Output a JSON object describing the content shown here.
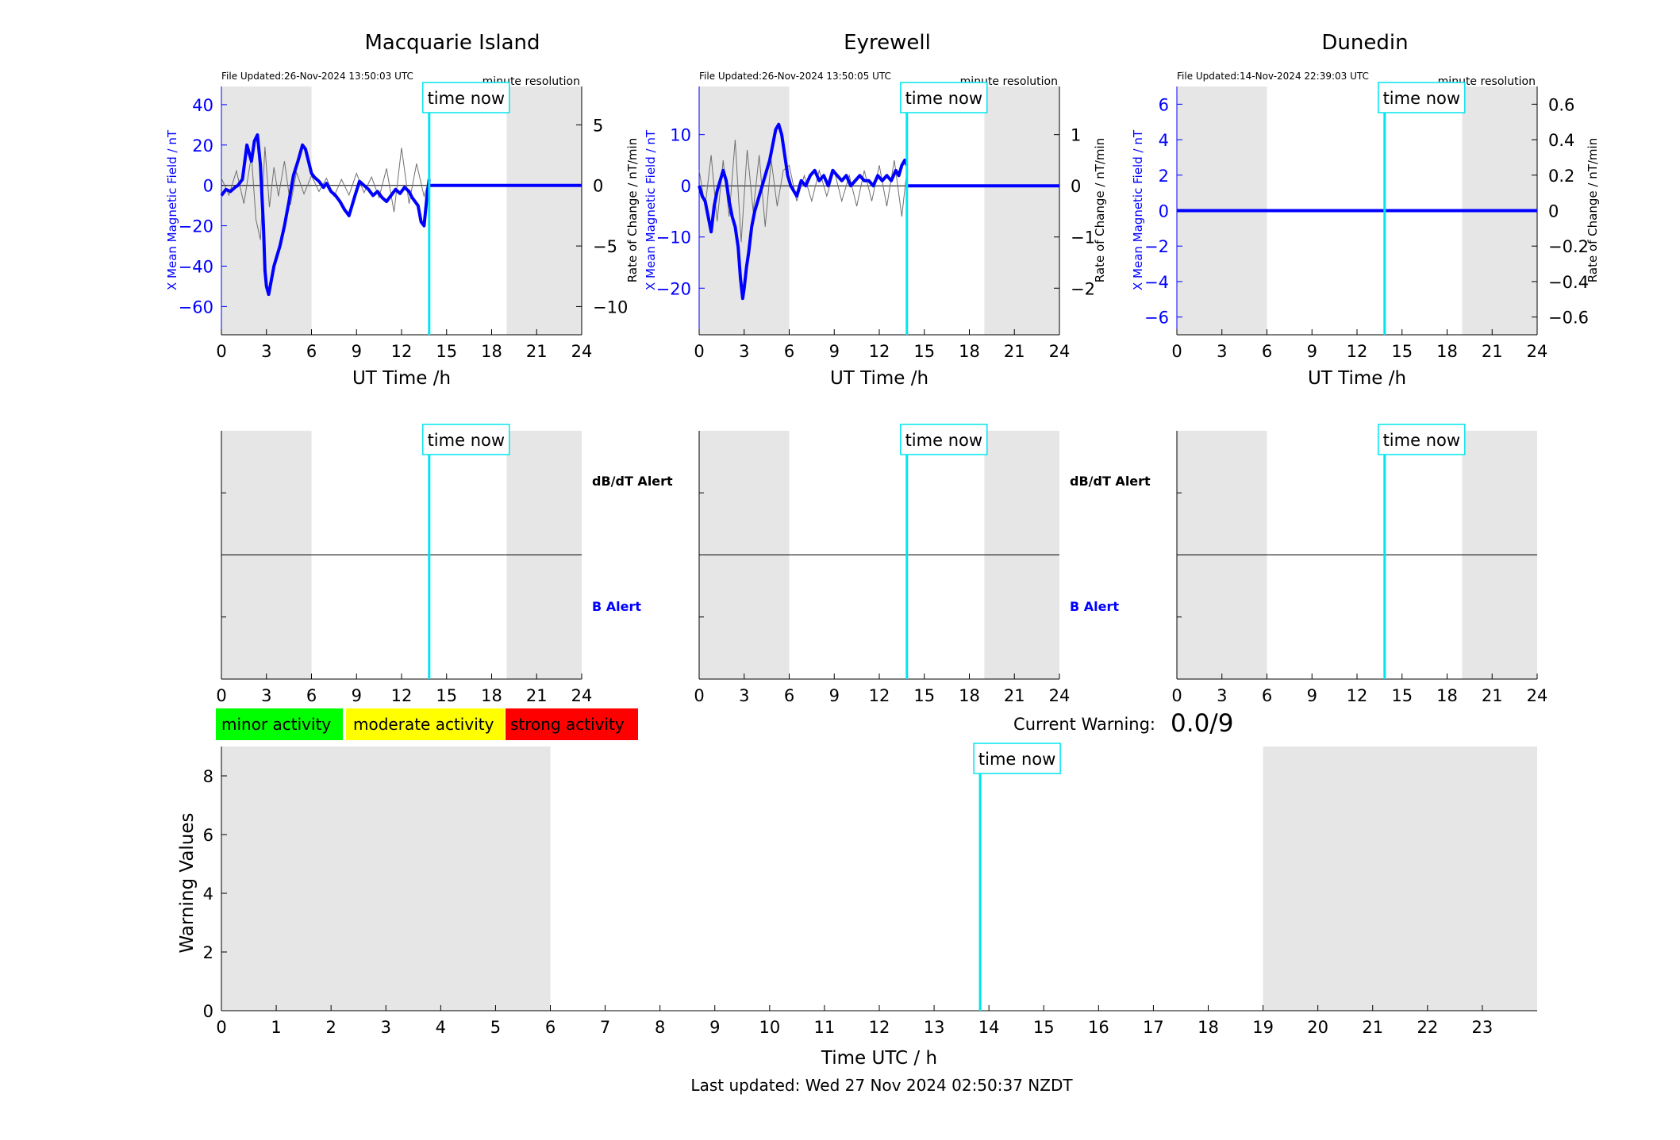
{
  "common": {
    "time_now_label": "time now",
    "time_now_h": 13.84,
    "night_shading": [
      [
        0,
        6
      ],
      [
        19,
        24
      ]
    ],
    "x_ticks": [
      0,
      3,
      6,
      9,
      12,
      15,
      18,
      21,
      24
    ],
    "xlim": [
      0,
      24
    ],
    "now_line_color": "#00e5ee",
    "field_color": "#0000ff",
    "rate_color": "#707070",
    "shade_color": "#e6e6e6"
  },
  "chart_data": [
    {
      "type": "line",
      "title": "Macquarie Island",
      "file_updated": "File Updated:26-Nov-2024 13:50:03 UTC",
      "resolution": "minute resolution",
      "xlabel": "UT Time /h",
      "ylabel": "X Mean Magnetic Field / nT",
      "ylabel_right": "Rate of Change / nT/min",
      "ylim": [
        -74,
        49
      ],
      "y_ticks": [
        -60,
        -40,
        -20,
        0,
        20,
        40
      ],
      "ylim_right": [
        -12.33,
        8.17
      ],
      "y_ticks_right": [
        -10,
        -5,
        0,
        5
      ],
      "data_end_h": 13.84,
      "series": [
        {
          "kind": "field",
          "x": [
            0,
            0.3,
            0.6,
            0.9,
            1.1,
            1.4,
            1.7,
            2.0,
            2.2,
            2.4,
            2.6,
            2.8,
            2.9,
            3.0,
            3.15,
            3.3,
            3.5,
            3.7,
            3.9,
            4.2,
            4.5,
            4.8,
            5.1,
            5.4,
            5.6,
            5.8,
            6.0,
            6.2,
            6.5,
            6.8,
            7.0,
            7.3,
            7.6,
            7.9,
            8.2,
            8.5,
            8.7,
            8.9,
            9.2,
            9.5,
            9.8,
            10.1,
            10.4,
            10.7,
            11.0,
            11.3,
            11.6,
            11.9,
            12.2,
            12.5,
            12.7,
            12.9,
            13.1,
            13.3,
            13.5,
            13.7,
            13.84
          ],
          "values": [
            -5,
            -2,
            -3,
            -1,
            0,
            3,
            20,
            12,
            22,
            25,
            10,
            -20,
            -42,
            -50,
            -54,
            -48,
            -40,
            -35,
            -30,
            -20,
            -8,
            5,
            12,
            20,
            18,
            12,
            6,
            4,
            2,
            -1,
            1,
            -3,
            -5,
            -8,
            -12,
            -15,
            -10,
            -5,
            2,
            0,
            -2,
            -5,
            -3,
            -6,
            -8,
            -5,
            -2,
            -4,
            -1,
            -3,
            -6,
            -8,
            -10,
            -18,
            -20,
            -5,
            3
          ]
        },
        {
          "kind": "rate",
          "x": [
            0,
            0.5,
            1.0,
            1.5,
            2.0,
            2.3,
            2.6,
            2.9,
            3.2,
            3.5,
            3.8,
            4.2,
            4.6,
            5.0,
            5.5,
            6.0,
            6.5,
            7.0,
            7.5,
            8.0,
            8.5,
            9.0,
            9.5,
            10.0,
            10.5,
            11.0,
            11.5,
            12.0,
            12.5,
            13.0,
            13.5,
            13.84
          ],
          "values": [
            0.6,
            -0.8,
            1.2,
            -1.5,
            2.5,
            -2.8,
            -4.5,
            3.2,
            -1.8,
            1.5,
            -0.9,
            2.0,
            -1.6,
            1.1,
            -0.7,
            0.8,
            -0.5,
            0.6,
            -0.9,
            0.5,
            -0.8,
            1.0,
            -0.6,
            0.7,
            -1.0,
            1.4,
            -2.2,
            3.1,
            -1.5,
            1.8,
            -0.9,
            0.5
          ]
        }
      ]
    },
    {
      "type": "line",
      "title": "Eyrewell",
      "file_updated": "File Updated:26-Nov-2024 13:50:05 UTC",
      "resolution": "minute resolution",
      "xlabel": "UT Time /h",
      "ylabel": "X Mean Magnetic Field / nT",
      "ylabel_right": "Rate of Change / nT/min",
      "ylim": [
        -29.1,
        19.4
      ],
      "y_ticks": [
        -20,
        -10,
        0,
        10
      ],
      "ylim_right": [
        -2.91,
        1.94
      ],
      "y_ticks_right": [
        -2,
        -1,
        0,
        1
      ],
      "data_end_h": 13.84,
      "series": [
        {
          "kind": "field",
          "x": [
            0,
            0.2,
            0.4,
            0.6,
            0.8,
            1.0,
            1.2,
            1.4,
            1.6,
            1.8,
            2.0,
            2.2,
            2.4,
            2.6,
            2.75,
            2.9,
            3.0,
            3.15,
            3.3,
            3.5,
            3.7,
            3.9,
            4.1,
            4.3,
            4.5,
            4.7,
            4.9,
            5.1,
            5.3,
            5.5,
            5.7,
            5.9,
            6.1,
            6.3,
            6.5,
            6.8,
            7.1,
            7.4,
            7.7,
            8.0,
            8.3,
            8.6,
            8.9,
            9.2,
            9.5,
            9.8,
            10.1,
            10.4,
            10.7,
            11.0,
            11.3,
            11.6,
            11.9,
            12.2,
            12.5,
            12.8,
            13.1,
            13.3,
            13.5,
            13.7,
            13.84
          ],
          "values": [
            0,
            -2,
            -3,
            -6,
            -9,
            -4,
            -1,
            1,
            3,
            1,
            -3,
            -6,
            -8,
            -12,
            -18,
            -22,
            -20,
            -16,
            -13,
            -8,
            -5,
            -3,
            -1,
            1,
            3,
            5,
            8,
            11,
            12,
            10,
            6,
            2,
            0,
            -1,
            -2,
            1,
            0,
            2,
            3,
            1,
            2,
            0,
            3,
            2,
            1,
            2,
            0,
            1,
            2,
            1,
            1,
            0,
            2,
            1,
            2,
            1,
            3,
            2,
            4,
            5,
            4
          ]
        },
        {
          "kind": "rate",
          "x": [
            0,
            0.4,
            0.8,
            1.2,
            1.6,
            2.0,
            2.4,
            2.8,
            3.2,
            3.6,
            4.0,
            4.4,
            4.8,
            5.2,
            5.6,
            6.0,
            6.5,
            7.0,
            7.5,
            8.0,
            8.5,
            9.0,
            9.5,
            10.0,
            10.5,
            11.0,
            11.5,
            12.0,
            12.5,
            13.0,
            13.5,
            13.84
          ],
          "values": [
            0.3,
            -0.4,
            0.6,
            -0.7,
            0.5,
            -0.6,
            0.9,
            -1.1,
            0.7,
            -0.5,
            0.6,
            -0.8,
            0.5,
            -0.4,
            0.3,
            0.4,
            -0.3,
            0.2,
            -0.3,
            0.3,
            -0.2,
            0.3,
            -0.3,
            0.2,
            -0.4,
            0.3,
            -0.3,
            0.4,
            -0.4,
            0.5,
            -0.6,
            0.3
          ]
        }
      ]
    },
    {
      "type": "line",
      "title": "Dunedin",
      "file_updated": "File Updated:14-Nov-2024 22:39:03 UTC",
      "resolution": "minute resolution",
      "xlabel": "UT Time /h",
      "ylabel": "X Mean Magnetic Field / nT",
      "ylabel_right": "Rate of Change / nT/min",
      "ylim": [
        -7,
        7
      ],
      "y_ticks": [
        -6,
        -4,
        -2,
        0,
        2,
        4,
        6
      ],
      "ylim_right": [
        -0.7,
        0.7
      ],
      "y_ticks_right": [
        -0.6,
        -0.4,
        -0.2,
        0,
        0.2,
        0.4,
        0.6
      ],
      "data_end_h": 24,
      "series": [
        {
          "kind": "field",
          "x": [
            0,
            24
          ],
          "values": [
            0,
            0
          ]
        },
        {
          "kind": "rate",
          "x": [
            0,
            24
          ],
          "values": [
            0,
            0
          ]
        }
      ]
    }
  ],
  "alerts": {
    "dbdt_label": "dB/dT Alert",
    "b_label": "B Alert",
    "label_color_b": "#0000ff"
  },
  "legend": {
    "items": [
      {
        "label": "minor activity",
        "color": "#00ff00"
      },
      {
        "label": "moderate activity",
        "color": "#ffff00"
      },
      {
        "label": "strong activity",
        "color": "#ff0000"
      }
    ]
  },
  "warning": {
    "current_label": "Current Warning:",
    "current_value": "0.0/9"
  },
  "warning_chart": {
    "type": "bar",
    "xlabel": "Time UTC / h",
    "ylabel": "Warning Values",
    "xlim": [
      0,
      24
    ],
    "ylim": [
      0,
      9
    ],
    "x_ticks": [
      0,
      1,
      2,
      3,
      4,
      5,
      6,
      7,
      8,
      9,
      10,
      11,
      12,
      13,
      14,
      15,
      16,
      17,
      18,
      19,
      20,
      21,
      22,
      23
    ],
    "y_ticks": [
      0,
      2,
      4,
      6,
      8
    ],
    "values": [
      0,
      0,
      0,
      0,
      0,
      0,
      0,
      0,
      0,
      0,
      0,
      0,
      0,
      0,
      0,
      0,
      0,
      0,
      0,
      0,
      0,
      0,
      0,
      0
    ]
  },
  "footer": {
    "last_updated": "Last updated: Wed 27 Nov 2024 02:50:37 NZDT"
  }
}
